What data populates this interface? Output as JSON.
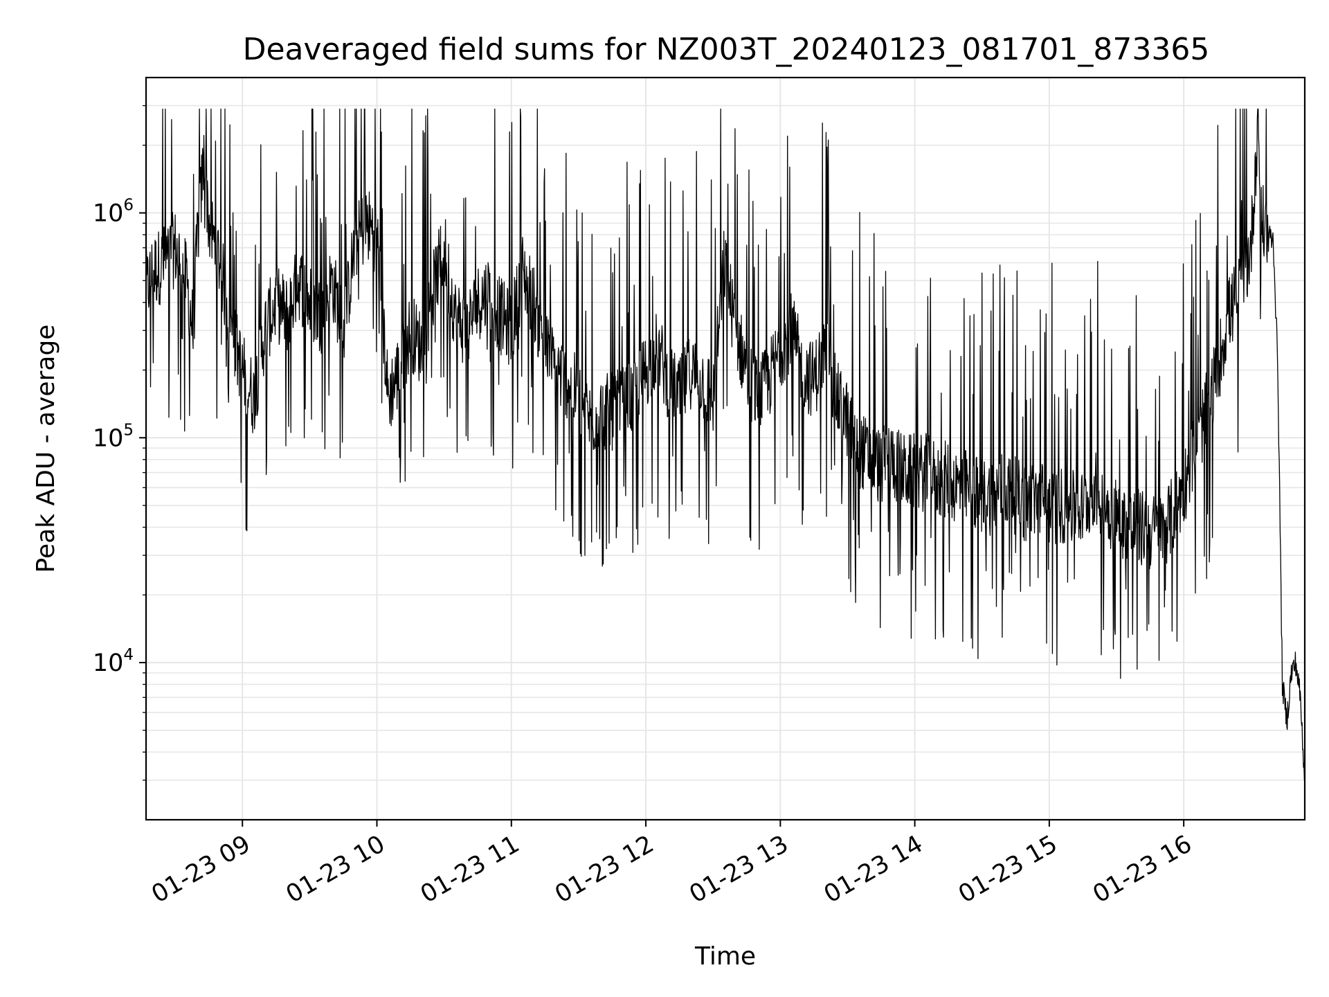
{
  "chart_data": {
    "type": "line",
    "title": "Deaveraged field sums for NZ003T_20240123_081701_873365",
    "xlabel": "Time",
    "ylabel": "Peak ADU - average",
    "y_scale": "log",
    "ylim": [
      2000,
      4000000
    ],
    "xlim": [
      "01-23 08:17",
      "01-23 16:54"
    ],
    "grid": true,
    "line_color": "#000000",
    "grid_color": "#e6e6e6",
    "x_ticks": [
      {
        "value": "01-23 09:00",
        "label": "01-23 09"
      },
      {
        "value": "01-23 10:00",
        "label": "01-23 10"
      },
      {
        "value": "01-23 11:00",
        "label": "01-23 11"
      },
      {
        "value": "01-23 12:00",
        "label": "01-23 12"
      },
      {
        "value": "01-23 13:00",
        "label": "01-23 13"
      },
      {
        "value": "01-23 14:00",
        "label": "01-23 14"
      },
      {
        "value": "01-23 15:00",
        "label": "01-23 15"
      },
      {
        "value": "01-23 16:00",
        "label": "01-23 16"
      }
    ],
    "y_ticks": [
      {
        "value": 10000,
        "base": "10",
        "exp": "4"
      },
      {
        "value": 100000,
        "base": "10",
        "exp": "5"
      },
      {
        "value": 1000000,
        "base": "10",
        "exp": "6"
      }
    ],
    "series": [
      {
        "x": [
          "01-23 08:17",
          "01-23 08:20",
          "01-23 08:25",
          "01-23 08:30",
          "01-23 08:35",
          "01-23 08:38",
          "01-23 08:40",
          "01-23 08:43",
          "01-23 08:45",
          "01-23 08:50",
          "01-23 08:55",
          "01-23 09:00",
          "01-23 09:05",
          "01-23 09:10",
          "01-23 09:15",
          "01-23 09:20",
          "01-23 09:25",
          "01-23 09:30",
          "01-23 09:35",
          "01-23 09:40",
          "01-23 09:45",
          "01-23 09:50",
          "01-23 09:55",
          "01-23 10:00",
          "01-23 10:03",
          "01-23 10:05",
          "01-23 10:10",
          "01-23 10:15",
          "01-23 10:20",
          "01-23 10:25",
          "01-23 10:30",
          "01-23 10:35",
          "01-23 10:40",
          "01-23 10:45",
          "01-23 10:50",
          "01-23 10:55",
          "01-23 11:00",
          "01-23 11:05",
          "01-23 11:10",
          "01-23 11:15",
          "01-23 11:20",
          "01-23 11:25",
          "01-23 11:30",
          "01-23 11:35",
          "01-23 11:40",
          "01-23 11:45",
          "01-23 11:50",
          "01-23 11:55",
          "01-23 12:00",
          "01-23 12:05",
          "01-23 12:10",
          "01-23 12:15",
          "01-23 12:20",
          "01-23 12:25",
          "01-23 12:30",
          "01-23 12:35",
          "01-23 12:40",
          "01-23 12:45",
          "01-23 12:50",
          "01-23 12:55",
          "01-23 13:00",
          "01-23 13:05",
          "01-23 13:10",
          "01-23 13:15",
          "01-23 13:20",
          "01-23 13:25",
          "01-23 13:30",
          "01-23 13:35",
          "01-23 13:40",
          "01-23 13:45",
          "01-23 13:50",
          "01-23 13:55",
          "01-23 14:00",
          "01-23 14:05",
          "01-23 14:10",
          "01-23 14:15",
          "01-23 14:20",
          "01-23 14:25",
          "01-23 14:30",
          "01-23 14:35",
          "01-23 14:40",
          "01-23 14:45",
          "01-23 14:50",
          "01-23 14:55",
          "01-23 15:00",
          "01-23 15:05",
          "01-23 15:10",
          "01-23 15:15",
          "01-23 15:20",
          "01-23 15:25",
          "01-23 15:30",
          "01-23 15:35",
          "01-23 15:40",
          "01-23 15:45",
          "01-23 15:50",
          "01-23 15:55",
          "01-23 16:00",
          "01-23 16:05",
          "01-23 16:10",
          "01-23 16:15",
          "01-23 16:20",
          "01-23 16:25",
          "01-23 16:30",
          "01-23 16:33",
          "01-23 16:35",
          "01-23 16:38",
          "01-23 16:40",
          "01-23 16:42",
          "01-23 16:44",
          "01-23 16:46",
          "01-23 16:48",
          "01-23 16:50",
          "01-23 16:52",
          "01-23 16:54"
        ],
        "y": [
          450000,
          550000,
          600000,
          700000,
          500000,
          300000,
          800000,
          1800000,
          900000,
          600000,
          300000,
          200000,
          150000,
          300000,
          400000,
          350000,
          500000,
          400000,
          350000,
          500000,
          300000,
          700000,
          900000,
          800000,
          300000,
          150000,
          200000,
          300000,
          250000,
          450000,
          700000,
          350000,
          300000,
          400000,
          450000,
          350000,
          300000,
          550000,
          400000,
          250000,
          200000,
          180000,
          150000,
          120000,
          130000,
          130000,
          140000,
          150000,
          200000,
          250000,
          180000,
          150000,
          200000,
          180000,
          150000,
          600000,
          300000,
          200000,
          150000,
          180000,
          250000,
          300000,
          200000,
          180000,
          250000,
          150000,
          120000,
          90000,
          80000,
          75000,
          80000,
          70000,
          70000,
          70000,
          65000,
          65000,
          60000,
          60000,
          55000,
          55000,
          60000,
          55000,
          50000,
          55000,
          50000,
          50000,
          48000,
          48000,
          60000,
          50000,
          45000,
          40000,
          40000,
          38000,
          38000,
          45000,
          60000,
          90000,
          130000,
          200000,
          350000,
          450000,
          700000,
          2500000,
          900000,
          800000,
          750000,
          200000,
          8000,
          5500,
          9000,
          10000,
          7000,
          3000
        ]
      }
    ]
  }
}
